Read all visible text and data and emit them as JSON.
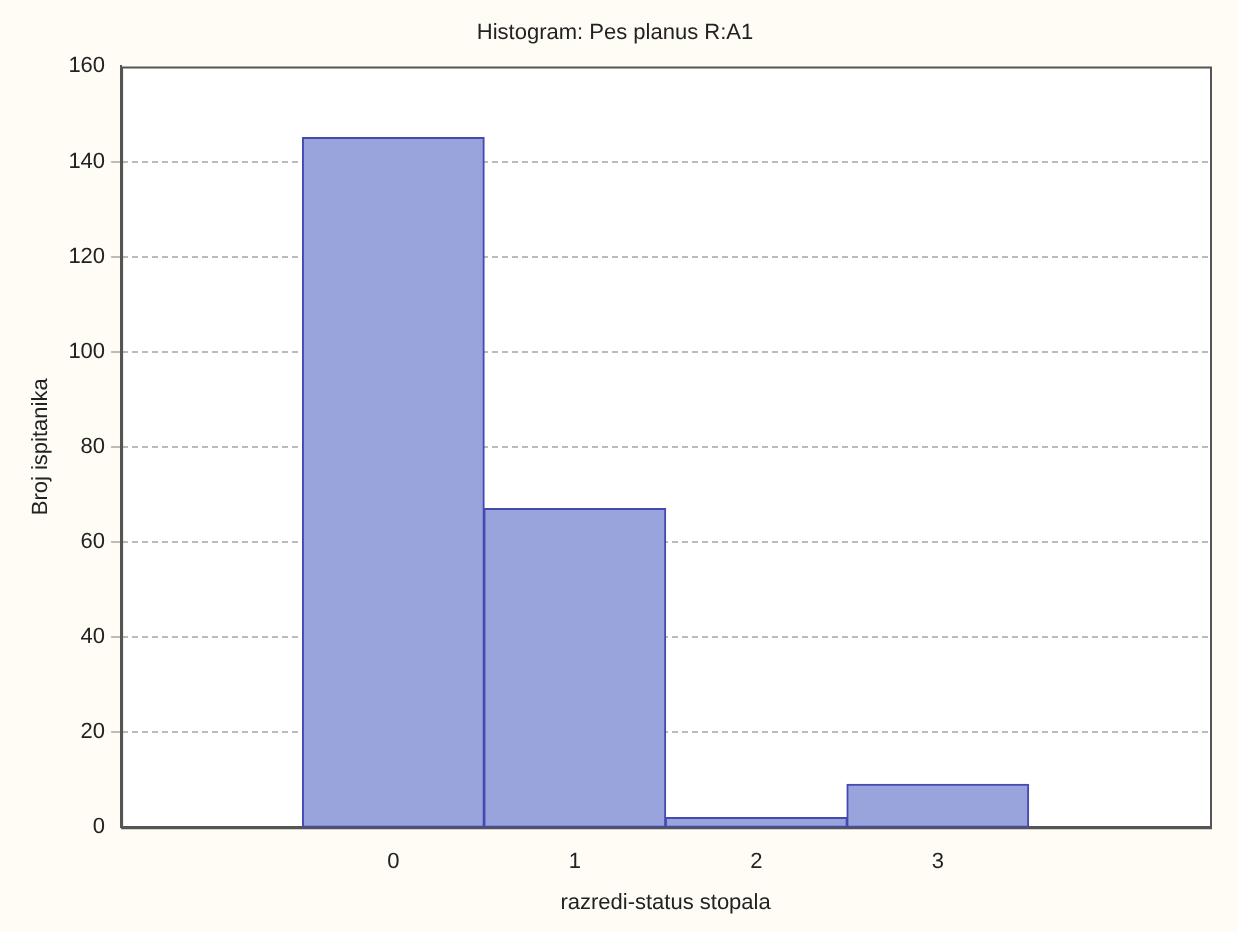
{
  "chart_data": {
    "type": "histogram",
    "title": "Histogram: Pes planus R:A1",
    "xlabel": "razredi-status stopala",
    "ylabel": "Broj ispitanika",
    "bins": [
      -0.5,
      0.5,
      1.5,
      2.5,
      3.5
    ],
    "values": [
      145,
      67,
      2,
      9
    ],
    "color": "#9aa4dc",
    "xlim": [
      -1.5,
      4.5
    ],
    "xticks": [
      0,
      1,
      2,
      3
    ],
    "ylim": [
      0,
      160
    ],
    "yticks": [
      0,
      20,
      40,
      60,
      80,
      100,
      120,
      140,
      160
    ],
    "grid": "y",
    "legend": false
  }
}
